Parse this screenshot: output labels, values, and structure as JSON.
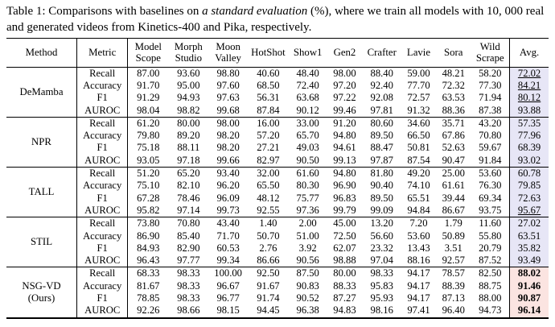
{
  "caption": {
    "prefix": "Table 1: Comparisons with baselines on ",
    "italic": "a standard evaluation",
    "suffix": " (%), where we train all models with 10, 000 real and generated videos from Kinetics-400 and Pika, respectively."
  },
  "colors": {
    "avg_column_bg": "#e7e6f6",
    "ours_avg_bg": "#fbe4e1",
    "rule_color": "#000000"
  },
  "table": {
    "columns": [
      "Method",
      "Metric",
      "Model Scope",
      "Morph Studio",
      "Moon Valley",
      "HotShot",
      "Show1",
      "Gen2",
      "Crafter",
      "Lavie",
      "Sora",
      "Wild Scrape",
      "Avg."
    ],
    "groups": [
      {
        "method": "DeMamba",
        "method_lines": [
          "DeMamba"
        ],
        "ours": false,
        "rows": [
          {
            "metric": "Recall",
            "values": [
              "87.00",
              "93.60",
              "98.80",
              "40.60",
              "48.40",
              "98.00",
              "88.40",
              "59.00",
              "48.21",
              "58.20"
            ],
            "avg": "72.02",
            "avg_emphasis": "underline"
          },
          {
            "metric": "Accuracy",
            "values": [
              "91.70",
              "95.00",
              "97.60",
              "68.50",
              "72.40",
              "97.20",
              "92.40",
              "77.70",
              "72.32",
              "77.30"
            ],
            "avg": "84.21",
            "avg_emphasis": "underline"
          },
          {
            "metric": "F1",
            "values": [
              "91.29",
              "94.93",
              "97.63",
              "56.31",
              "63.68",
              "97.22",
              "92.08",
              "72.57",
              "63.53",
              "71.94"
            ],
            "avg": "80.12",
            "avg_emphasis": "underline"
          },
          {
            "metric": "AUROC",
            "values": [
              "98.04",
              "98.82",
              "99.68",
              "87.84",
              "90.12",
              "99.46",
              "97.81",
              "91.32",
              "88.36",
              "87.38"
            ],
            "avg": "93.88",
            "avg_emphasis": null
          }
        ]
      },
      {
        "method": "NPR",
        "method_lines": [
          "NPR"
        ],
        "ours": false,
        "rows": [
          {
            "metric": "Recall",
            "values": [
              "61.20",
              "80.00",
              "98.00",
              "16.00",
              "33.00",
              "91.20",
              "80.60",
              "34.60",
              "35.71",
              "43.20"
            ],
            "avg": "57.35",
            "avg_emphasis": null
          },
          {
            "metric": "Accuracy",
            "values": [
              "79.80",
              "89.20",
              "98.20",
              "57.20",
              "65.70",
              "94.80",
              "89.50",
              "66.50",
              "67.86",
              "70.80"
            ],
            "avg": "77.96",
            "avg_emphasis": null
          },
          {
            "metric": "F1",
            "values": [
              "75.18",
              "88.11",
              "98.20",
              "27.21",
              "49.03",
              "94.61",
              "88.47",
              "50.81",
              "52.63",
              "59.67"
            ],
            "avg": "68.39",
            "avg_emphasis": null
          },
          {
            "metric": "AUROC",
            "values": [
              "93.05",
              "97.18",
              "99.66",
              "82.97",
              "90.50",
              "99.13",
              "97.87",
              "87.54",
              "90.47",
              "91.84"
            ],
            "avg": "93.02",
            "avg_emphasis": null
          }
        ]
      },
      {
        "method": "TALL",
        "method_lines": [
          "TALL"
        ],
        "ours": false,
        "rows": [
          {
            "metric": "Recall",
            "values": [
              "51.20",
              "65.20",
              "93.40",
              "32.00",
              "61.60",
              "94.80",
              "81.80",
              "49.20",
              "25.00",
              "53.60"
            ],
            "avg": "60.78",
            "avg_emphasis": null
          },
          {
            "metric": "Accuracy",
            "values": [
              "75.10",
              "82.10",
              "96.20",
              "65.50",
              "80.30",
              "96.90",
              "90.40",
              "74.10",
              "61.61",
              "76.30"
            ],
            "avg": "79.85",
            "avg_emphasis": null
          },
          {
            "metric": "F1",
            "values": [
              "67.28",
              "78.46",
              "96.09",
              "48.12",
              "75.77",
              "96.83",
              "89.50",
              "65.51",
              "39.44",
              "69.34"
            ],
            "avg": "72.63",
            "avg_emphasis": null
          },
          {
            "metric": "AUROC",
            "values": [
              "95.82",
              "97.14",
              "99.73",
              "92.55",
              "97.36",
              "99.79",
              "99.09",
              "94.84",
              "86.67",
              "93.75"
            ],
            "avg": "95.67",
            "avg_emphasis": "underline"
          }
        ]
      },
      {
        "method": "STIL",
        "method_lines": [
          "STIL"
        ],
        "ours": false,
        "rows": [
          {
            "metric": "Recall",
            "values": [
              "73.80",
              "70.80",
              "43.40",
              "1.40",
              "2.00",
              "45.00",
              "13.20",
              "7.20",
              "1.79",
              "11.60"
            ],
            "avg": "27.02",
            "avg_emphasis": null
          },
          {
            "metric": "Accuracy",
            "values": [
              "86.90",
              "85.40",
              "71.70",
              "50.70",
              "51.00",
              "72.50",
              "56.60",
              "53.60",
              "50.89",
              "55.80"
            ],
            "avg": "63.51",
            "avg_emphasis": null
          },
          {
            "metric": "F1",
            "values": [
              "84.93",
              "82.90",
              "60.53",
              "2.76",
              "3.92",
              "62.07",
              "23.32",
              "13.43",
              "3.51",
              "20.79"
            ],
            "avg": "35.82",
            "avg_emphasis": null
          },
          {
            "metric": "AUROC",
            "values": [
              "96.43",
              "97.77",
              "99.34",
              "86.66",
              "90.56",
              "98.88",
              "97.04",
              "88.16",
              "92.57",
              "87.52"
            ],
            "avg": "93.49",
            "avg_emphasis": null
          }
        ]
      },
      {
        "method": "NSG-VD (Ours)",
        "method_lines": [
          "NSG-VD",
          "(Ours)"
        ],
        "ours": true,
        "rows": [
          {
            "metric": "Recall",
            "values": [
              "68.33",
              "98.33",
              "100.00",
              "92.50",
              "87.50",
              "80.00",
              "98.33",
              "94.17",
              "78.57",
              "82.50"
            ],
            "avg": "88.02",
            "avg_emphasis": "bold"
          },
          {
            "metric": "Accuracy",
            "values": [
              "81.67",
              "98.33",
              "96.67",
              "91.67",
              "90.83",
              "88.33",
              "95.83",
              "94.17",
              "88.39",
              "88.75"
            ],
            "avg": "91.46",
            "avg_emphasis": "bold"
          },
          {
            "metric": "F1",
            "values": [
              "78.85",
              "98.33",
              "96.77",
              "91.74",
              "90.52",
              "87.27",
              "95.93",
              "94.17",
              "87.13",
              "88.00"
            ],
            "avg": "90.87",
            "avg_emphasis": "bold"
          },
          {
            "metric": "AUROC",
            "values": [
              "92.26",
              "98.66",
              "98.15",
              "94.45",
              "96.38",
              "94.83",
              "98.16",
              "97.41",
              "96.40",
              "94.73"
            ],
            "avg": "96.14",
            "avg_emphasis": "bold"
          }
        ]
      }
    ]
  }
}
